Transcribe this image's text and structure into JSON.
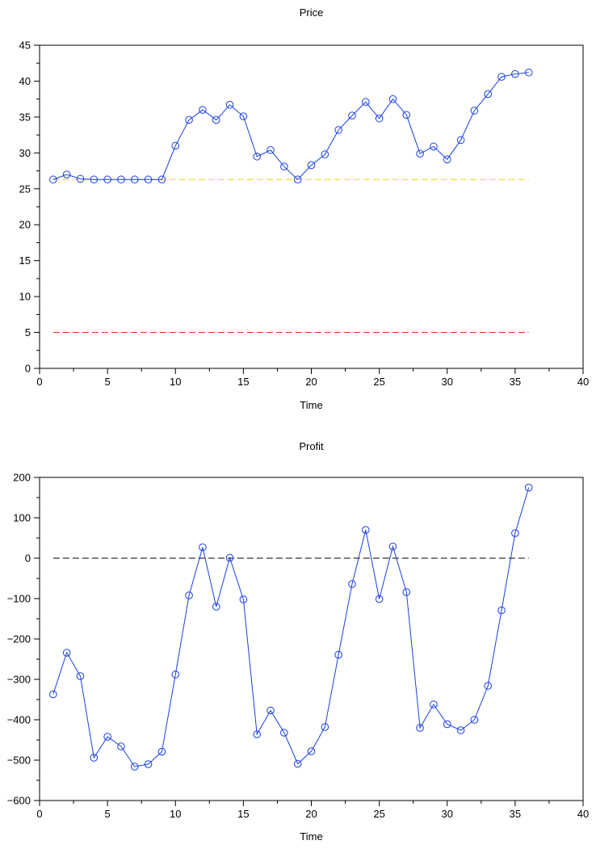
{
  "colors": {
    "series": "#1a3fe0",
    "ref_yellow": "#e8d800",
    "ref_red": "#e03010",
    "ref_black": "#000000",
    "axis": "#000000"
  },
  "chart_data": [
    {
      "type": "line",
      "title": "Price",
      "xlabel": "Time",
      "ylabel": "",
      "xlim": [
        0,
        40
      ],
      "ylim": [
        0,
        45
      ],
      "xticks": [
        0,
        5,
        10,
        15,
        20,
        25,
        30,
        35,
        40
      ],
      "yticks": [
        0,
        5,
        10,
        15,
        20,
        25,
        30,
        35,
        40,
        45
      ],
      "grid": false,
      "x": [
        1,
        2,
        3,
        4,
        5,
        6,
        7,
        8,
        9,
        10,
        11,
        12,
        13,
        14,
        15,
        16,
        17,
        18,
        19,
        20,
        21,
        22,
        23,
        24,
        25,
        26,
        27,
        28,
        29,
        30,
        31,
        32,
        33,
        34,
        35,
        36
      ],
      "series": [
        {
          "style": "line-circle-markers",
          "color": "#1a3fe0",
          "values": [
            26.3,
            27.0,
            26.4,
            26.3,
            26.3,
            26.3,
            26.3,
            26.3,
            26.3,
            31.0,
            34.6,
            36.0,
            34.6,
            36.7,
            35.1,
            29.5,
            30.4,
            28.1,
            26.3,
            28.3,
            29.8,
            33.2,
            35.2,
            37.1,
            34.8,
            37.5,
            35.3,
            29.9,
            30.9,
            29.1,
            31.8,
            35.9,
            38.2,
            40.6,
            41.0,
            41.2
          ]
        }
      ],
      "reference_lines": [
        {
          "style": "dashed",
          "color": "#e8d800",
          "y": 26.3,
          "x_from": 1,
          "x_to": 36
        },
        {
          "style": "dashed",
          "color": "#e03010",
          "y": 5.0,
          "x_from": 1,
          "x_to": 36
        }
      ]
    },
    {
      "type": "line",
      "title": "Profit",
      "xlabel": "Time",
      "ylabel": "",
      "xlim": [
        0,
        40
      ],
      "ylim": [
        -600,
        200
      ],
      "xticks": [
        0,
        5,
        10,
        15,
        20,
        25,
        30,
        35,
        40
      ],
      "yticks": [
        -600,
        -500,
        -400,
        -300,
        -200,
        -100,
        0,
        100,
        200
      ],
      "grid": false,
      "x": [
        1,
        2,
        3,
        4,
        5,
        6,
        7,
        8,
        9,
        10,
        11,
        12,
        13,
        14,
        15,
        16,
        17,
        18,
        19,
        20,
        21,
        22,
        23,
        24,
        25,
        26,
        27,
        28,
        29,
        30,
        31,
        32,
        33,
        34,
        35,
        36
      ],
      "series": [
        {
          "style": "line-circle-markers",
          "color": "#1a3fe0",
          "values": [
            -337,
            -234,
            -292,
            -494,
            -442,
            -466,
            -516,
            -510,
            -479,
            -288,
            -92,
            27,
            -120,
            1,
            -102,
            -436,
            -377,
            -432,
            -509,
            -478,
            -418,
            -239,
            -64,
            70,
            -101,
            29,
            -84,
            -420,
            -362,
            -411,
            -426,
            -400,
            -316,
            -129,
            62,
            175
          ]
        }
      ],
      "reference_lines": [
        {
          "style": "dashed",
          "color": "#000000",
          "y": 0,
          "x_from": 1,
          "x_to": 36
        }
      ]
    }
  ]
}
